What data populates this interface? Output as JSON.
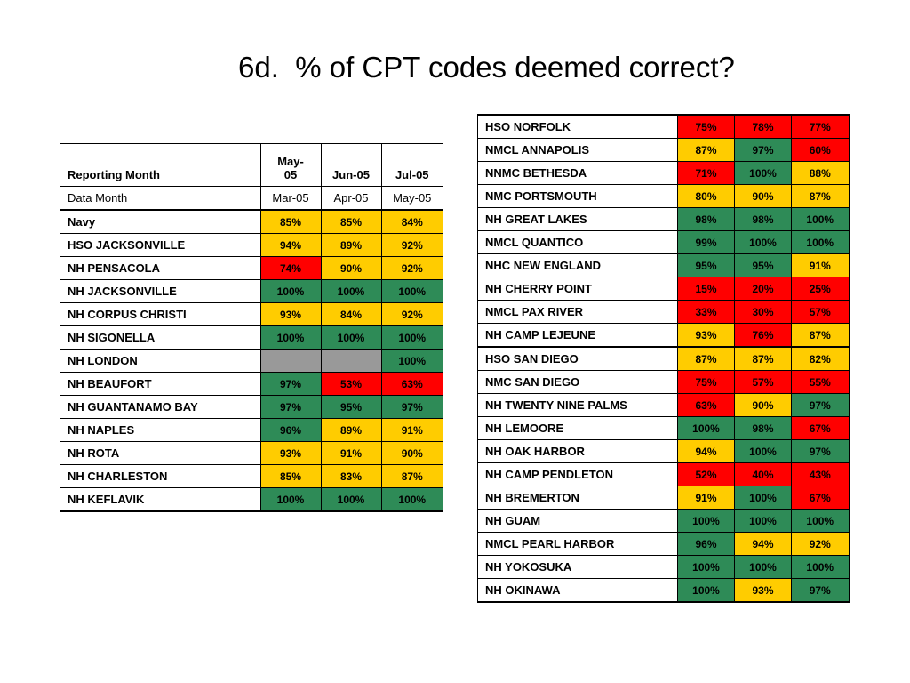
{
  "title": "6d.  % of CPT codes deemed correct?",
  "colors": {
    "green": "#2e8b57",
    "yellow": "#ffcc00",
    "red": "#ff0000",
    "gray": "#999999"
  },
  "left_table": {
    "header": {
      "label": "Reporting Month",
      "cols": [
        "May-05",
        "Jun-05",
        "Jul-05"
      ]
    },
    "subheader": {
      "label": "Data Month",
      "cols": [
        "Mar-05",
        "Apr-05",
        "May-05"
      ]
    },
    "rows": [
      {
        "name": "Navy",
        "values": [
          "85%",
          "85%",
          "84%"
        ],
        "colors": [
          "yellow",
          "yellow",
          "yellow"
        ]
      },
      {
        "name": "HSO JACKSONVILLE",
        "values": [
          "94%",
          "89%",
          "92%"
        ],
        "colors": [
          "yellow",
          "yellow",
          "yellow"
        ]
      },
      {
        "name": "NH PENSACOLA",
        "values": [
          "74%",
          "90%",
          "92%"
        ],
        "colors": [
          "red",
          "yellow",
          "yellow"
        ]
      },
      {
        "name": "NH JACKSONVILLE",
        "values": [
          "100%",
          "100%",
          "100%"
        ],
        "colors": [
          "green",
          "green",
          "green"
        ]
      },
      {
        "name": "NH CORPUS CHRISTI",
        "values": [
          "93%",
          "84%",
          "92%"
        ],
        "colors": [
          "yellow",
          "yellow",
          "yellow"
        ]
      },
      {
        "name": "NH SIGONELLA",
        "values": [
          "100%",
          "100%",
          "100%"
        ],
        "colors": [
          "green",
          "green",
          "green"
        ]
      },
      {
        "name": "NH LONDON",
        "values": [
          "",
          "",
          "100%"
        ],
        "colors": [
          "gray",
          "gray",
          "green"
        ]
      },
      {
        "name": "NH BEAUFORT",
        "values": [
          "97%",
          "53%",
          "63%"
        ],
        "colors": [
          "green",
          "red",
          "red"
        ]
      },
      {
        "name": "NH GUANTANAMO BAY",
        "values": [
          "97%",
          "95%",
          "97%"
        ],
        "colors": [
          "green",
          "green",
          "green"
        ]
      },
      {
        "name": "NH NAPLES",
        "values": [
          "96%",
          "89%",
          "91%"
        ],
        "colors": [
          "green",
          "yellow",
          "yellow"
        ]
      },
      {
        "name": "NH ROTA",
        "values": [
          "93%",
          "91%",
          "90%"
        ],
        "colors": [
          "yellow",
          "yellow",
          "yellow"
        ]
      },
      {
        "name": "NH CHARLESTON",
        "values": [
          "85%",
          "83%",
          "87%"
        ],
        "colors": [
          "yellow",
          "yellow",
          "yellow"
        ]
      },
      {
        "name": "NH KEFLAVIK",
        "values": [
          "100%",
          "100%",
          "100%"
        ],
        "colors": [
          "green",
          "green",
          "green"
        ]
      }
    ]
  },
  "right_table": {
    "rows": [
      {
        "name": "HSO NORFOLK",
        "values": [
          "75%",
          "78%",
          "77%"
        ],
        "colors": [
          "red",
          "red",
          "red"
        ]
      },
      {
        "name": "NMCL ANNAPOLIS",
        "values": [
          "87%",
          "97%",
          "60%"
        ],
        "colors": [
          "yellow",
          "green",
          "red"
        ]
      },
      {
        "name": "NNMC BETHESDA",
        "values": [
          "71%",
          "100%",
          "88%"
        ],
        "colors": [
          "red",
          "green",
          "yellow"
        ]
      },
      {
        "name": "NMC PORTSMOUTH",
        "values": [
          "80%",
          "90%",
          "87%"
        ],
        "colors": [
          "yellow",
          "yellow",
          "yellow"
        ]
      },
      {
        "name": "NH GREAT LAKES",
        "values": [
          "98%",
          "98%",
          "100%"
        ],
        "colors": [
          "green",
          "green",
          "green"
        ]
      },
      {
        "name": "NMCL QUANTICO",
        "values": [
          "99%",
          "100%",
          "100%"
        ],
        "colors": [
          "green",
          "green",
          "green"
        ]
      },
      {
        "name": "NHC NEW ENGLAND",
        "values": [
          "95%",
          "95%",
          "91%"
        ],
        "colors": [
          "green",
          "green",
          "yellow"
        ]
      },
      {
        "name": "NH CHERRY POINT",
        "values": [
          "15%",
          "20%",
          "25%"
        ],
        "colors": [
          "red",
          "red",
          "red"
        ]
      },
      {
        "name": "NMCL PAX RIVER",
        "values": [
          "33%",
          "30%",
          "57%"
        ],
        "colors": [
          "red",
          "red",
          "red"
        ]
      },
      {
        "name": "NH CAMP LEJEUNE",
        "values": [
          "93%",
          "76%",
          "87%"
        ],
        "colors": [
          "yellow",
          "red",
          "yellow"
        ],
        "group_end": true
      },
      {
        "name": "HSO SAN DIEGO",
        "values": [
          "87%",
          "87%",
          "82%"
        ],
        "colors": [
          "yellow",
          "yellow",
          "yellow"
        ]
      },
      {
        "name": "NMC SAN DIEGO",
        "values": [
          "75%",
          "57%",
          "55%"
        ],
        "colors": [
          "red",
          "red",
          "red"
        ]
      },
      {
        "name": "NH TWENTY NINE PALMS",
        "values": [
          "63%",
          "90%",
          "97%"
        ],
        "colors": [
          "red",
          "yellow",
          "green"
        ]
      },
      {
        "name": "NH LEMOORE",
        "values": [
          "100%",
          "98%",
          "67%"
        ],
        "colors": [
          "green",
          "green",
          "red"
        ]
      },
      {
        "name": "NH OAK HARBOR",
        "values": [
          "94%",
          "100%",
          "97%"
        ],
        "colors": [
          "yellow",
          "green",
          "green"
        ]
      },
      {
        "name": "NH CAMP PENDLETON",
        "values": [
          "52%",
          "40%",
          "43%"
        ],
        "colors": [
          "red",
          "red",
          "red"
        ]
      },
      {
        "name": "NH BREMERTON",
        "values": [
          "91%",
          "100%",
          "67%"
        ],
        "colors": [
          "yellow",
          "green",
          "red"
        ]
      },
      {
        "name": "NH GUAM",
        "values": [
          "100%",
          "100%",
          "100%"
        ],
        "colors": [
          "green",
          "green",
          "green"
        ]
      },
      {
        "name": "NMCL PEARL HARBOR",
        "values": [
          "96%",
          "94%",
          "92%"
        ],
        "colors": [
          "green",
          "yellow",
          "yellow"
        ]
      },
      {
        "name": "NH YOKOSUKA",
        "values": [
          "100%",
          "100%",
          "100%"
        ],
        "colors": [
          "green",
          "green",
          "green"
        ]
      },
      {
        "name": "NH OKINAWA",
        "values": [
          "100%",
          "93%",
          "97%"
        ],
        "colors": [
          "green",
          "yellow",
          "green"
        ]
      }
    ]
  }
}
